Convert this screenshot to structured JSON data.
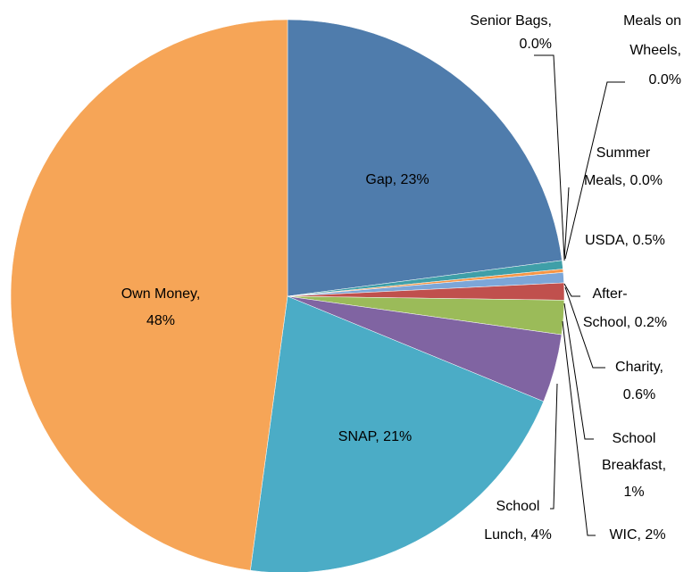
{
  "chart_data": {
    "type": "pie",
    "values": [
      23,
      0.0,
      0.0,
      0.0,
      0.5,
      0.2,
      0.6,
      1,
      2,
      4,
      21,
      48
    ],
    "value_labels": [
      [
        "Gap, 23%"
      ],
      [
        "Senior Bags,",
        "0.0%"
      ],
      [
        "Meals on",
        "Wheels,",
        "0.0%"
      ],
      [
        "Summer",
        "Meals, 0.0%"
      ],
      [
        "USDA, 0.5%"
      ],
      [
        "After-",
        "School, 0.2%"
      ],
      [
        "Charity,",
        "0.6%"
      ],
      [
        "School",
        "Breakfast,",
        "1%"
      ],
      [
        "WIC, 2%"
      ],
      [
        "School",
        "Lunch, 4%"
      ],
      [
        "SNAP, 21%"
      ],
      [
        "Own Money,",
        "48%"
      ]
    ],
    "colors": [
      "#4f7cac",
      "#2c4d75",
      "#772c2a",
      "#5f7530",
      "#3f9fa8",
      "#f79646",
      "#7ca6d8",
      "#c0504d",
      "#9bbb59",
      "#8064a2",
      "#4bacc6",
      "#f6a557"
    ]
  }
}
